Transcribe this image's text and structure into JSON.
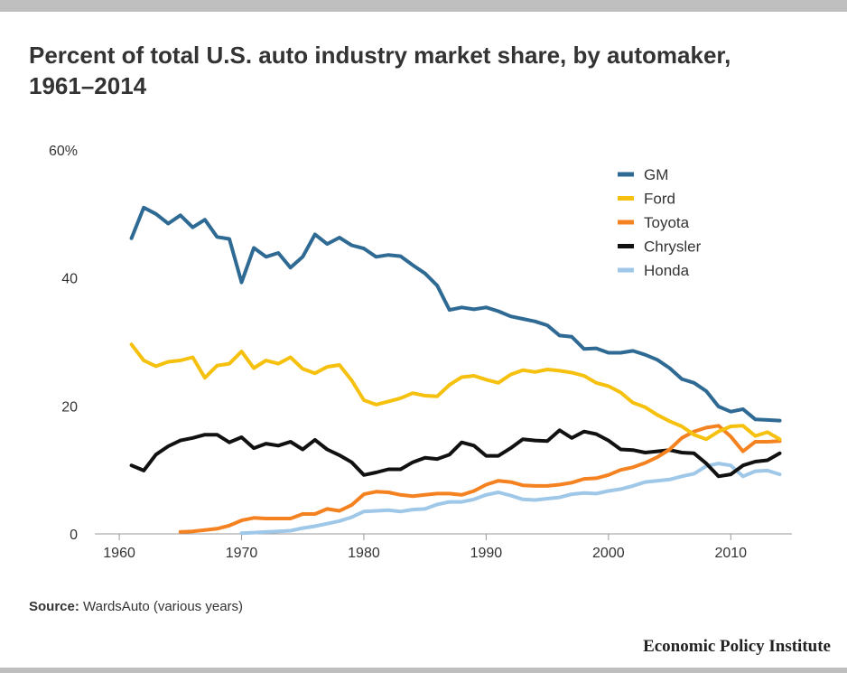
{
  "title": "Percent of total U.S. auto industry market share, by automaker, 1961–2014",
  "source_label": "Source:",
  "source_text": "WardsAuto (various years)",
  "brand": "Economic Policy Institute",
  "chart_data": {
    "type": "line",
    "title": "Percent of total U.S. auto industry market share, by automaker, 1961–2014",
    "xlabel": "",
    "ylabel": "",
    "xlim": [
      1958,
      2015
    ],
    "ylim": [
      0,
      60
    ],
    "x_ticks": [
      1960,
      1970,
      1980,
      1990,
      2000,
      2010
    ],
    "y_ticks": [
      0,
      20,
      40,
      60
    ],
    "y_tick_labels": [
      "0",
      "20",
      "40",
      "60%"
    ],
    "grid": false,
    "legend_position": "top-right",
    "series": [
      {
        "name": "GM",
        "color": "#2e6a93",
        "x": [
          1961,
          1962,
          1963,
          1964,
          1965,
          1966,
          1967,
          1968,
          1969,
          1970,
          1971,
          1972,
          1973,
          1974,
          1975,
          1976,
          1977,
          1978,
          1979,
          1980,
          1981,
          1982,
          1983,
          1984,
          1985,
          1986,
          1987,
          1988,
          1989,
          1990,
          1991,
          1992,
          1993,
          1994,
          1995,
          1996,
          1997,
          1998,
          1999,
          2000,
          2001,
          2002,
          2003,
          2004,
          2005,
          2006,
          2007,
          2008,
          2009,
          2010,
          2011,
          2012,
          2013,
          2014
        ],
        "values": [
          46.2,
          51.0,
          50.0,
          48.5,
          49.8,
          47.9,
          49.1,
          46.4,
          46.1,
          39.3,
          44.7,
          43.3,
          43.9,
          41.6,
          43.3,
          46.8,
          45.3,
          46.3,
          45.1,
          44.6,
          43.3,
          43.6,
          43.4,
          42.0,
          40.7,
          38.8,
          35.0,
          35.4,
          35.1,
          35.4,
          34.8,
          34.0,
          33.6,
          33.2,
          32.6,
          31.0,
          30.8,
          28.9,
          29.0,
          28.3,
          28.3,
          28.6,
          28.0,
          27.2,
          25.9,
          24.2,
          23.6,
          22.3,
          19.9,
          19.1,
          19.5,
          17.9,
          17.8,
          17.7
        ]
      },
      {
        "name": "Ford",
        "color": "#f6c10e",
        "x": [
          1961,
          1962,
          1963,
          1964,
          1965,
          1966,
          1967,
          1968,
          1969,
          1970,
          1971,
          1972,
          1973,
          1974,
          1975,
          1976,
          1977,
          1978,
          1979,
          1980,
          1981,
          1982,
          1983,
          1984,
          1985,
          1986,
          1987,
          1988,
          1989,
          1990,
          1991,
          1992,
          1993,
          1994,
          1995,
          1996,
          1997,
          1998,
          1999,
          2000,
          2001,
          2002,
          2003,
          2004,
          2005,
          2006,
          2007,
          2008,
          2009,
          2010,
          2011,
          2012,
          2013,
          2014
        ],
        "values": [
          29.6,
          27.1,
          26.2,
          26.9,
          27.1,
          27.6,
          24.4,
          26.3,
          26.6,
          28.5,
          25.9,
          27.1,
          26.6,
          27.6,
          25.8,
          25.1,
          26.1,
          26.4,
          24.0,
          20.9,
          20.2,
          20.7,
          21.2,
          22.0,
          21.6,
          21.5,
          23.3,
          24.5,
          24.7,
          24.1,
          23.6,
          24.9,
          25.6,
          25.3,
          25.7,
          25.5,
          25.2,
          24.7,
          23.6,
          23.1,
          22.1,
          20.5,
          19.8,
          18.6,
          17.6,
          16.8,
          15.5,
          14.8,
          16.0,
          16.8,
          16.9,
          15.3,
          15.9,
          14.8
        ]
      },
      {
        "name": "Toyota",
        "color": "#f58220",
        "x": [
          1965,
          1966,
          1967,
          1968,
          1969,
          1970,
          1971,
          1972,
          1973,
          1974,
          1975,
          1976,
          1977,
          1978,
          1979,
          1980,
          1981,
          1982,
          1983,
          1984,
          1985,
          1986,
          1987,
          1988,
          1989,
          1990,
          1991,
          1992,
          1993,
          1994,
          1995,
          1996,
          1997,
          1998,
          1999,
          2000,
          2001,
          2002,
          2003,
          2004,
          2005,
          2006,
          2007,
          2008,
          2009,
          2010,
          2011,
          2012,
          2013,
          2014
        ],
        "values": [
          0.3,
          0.4,
          0.6,
          0.8,
          1.3,
          2.1,
          2.5,
          2.4,
          2.4,
          2.4,
          3.1,
          3.1,
          3.9,
          3.6,
          4.5,
          6.2,
          6.6,
          6.5,
          6.1,
          5.9,
          6.1,
          6.3,
          6.3,
          6.1,
          6.7,
          7.7,
          8.3,
          8.1,
          7.6,
          7.5,
          7.5,
          7.7,
          8.0,
          8.6,
          8.7,
          9.2,
          10.0,
          10.4,
          11.1,
          12.0,
          13.2,
          15.0,
          16.0,
          16.6,
          16.9,
          15.2,
          12.9,
          14.4,
          14.4,
          14.5
        ]
      },
      {
        "name": "Chrysler",
        "color": "#111111",
        "x": [
          1961,
          1962,
          1963,
          1964,
          1965,
          1966,
          1967,
          1968,
          1969,
          1970,
          1971,
          1972,
          1973,
          1974,
          1975,
          1976,
          1977,
          1978,
          1979,
          1980,
          1981,
          1982,
          1983,
          1984,
          1985,
          1986,
          1987,
          1988,
          1989,
          1990,
          1991,
          1992,
          1993,
          1994,
          1995,
          1996,
          1997,
          1998,
          1999,
          2000,
          2001,
          2002,
          2003,
          2004,
          2005,
          2006,
          2007,
          2008,
          2009,
          2010,
          2011,
          2012,
          2013,
          2014
        ],
        "values": [
          10.7,
          9.9,
          12.4,
          13.7,
          14.6,
          15.0,
          15.5,
          15.5,
          14.3,
          15.1,
          13.4,
          14.1,
          13.8,
          14.4,
          13.2,
          14.7,
          13.2,
          12.3,
          11.2,
          9.2,
          9.6,
          10.1,
          10.1,
          11.2,
          11.9,
          11.7,
          12.4,
          14.3,
          13.8,
          12.2,
          12.2,
          13.4,
          14.8,
          14.6,
          14.5,
          16.2,
          15.0,
          16.0,
          15.6,
          14.6,
          13.2,
          13.1,
          12.7,
          12.9,
          13.1,
          12.7,
          12.6,
          11.0,
          9.0,
          9.3,
          10.7,
          11.3,
          11.5,
          12.6
        ]
      },
      {
        "name": "Honda",
        "color": "#9fc7e8",
        "x": [
          1970,
          1971,
          1972,
          1973,
          1974,
          1975,
          1976,
          1977,
          1978,
          1979,
          1980,
          1981,
          1982,
          1983,
          1984,
          1985,
          1986,
          1987,
          1988,
          1989,
          1990,
          1991,
          1992,
          1993,
          1994,
          1995,
          1996,
          1997,
          1998,
          1999,
          2000,
          2001,
          2002,
          2003,
          2004,
          2005,
          2006,
          2007,
          2008,
          2009,
          2010,
          2011,
          2012,
          2013,
          2014
        ],
        "values": [
          0.1,
          0.2,
          0.3,
          0.4,
          0.5,
          0.9,
          1.2,
          1.6,
          2.0,
          2.6,
          3.5,
          3.6,
          3.7,
          3.5,
          3.8,
          3.9,
          4.6,
          5.0,
          5.0,
          5.4,
          6.1,
          6.5,
          6.0,
          5.4,
          5.3,
          5.5,
          5.7,
          6.2,
          6.4,
          6.3,
          6.7,
          7.0,
          7.5,
          8.1,
          8.3,
          8.5,
          9.0,
          9.4,
          10.6,
          11.0,
          10.7,
          9.0,
          9.8,
          9.9,
          9.3
        ]
      }
    ]
  }
}
